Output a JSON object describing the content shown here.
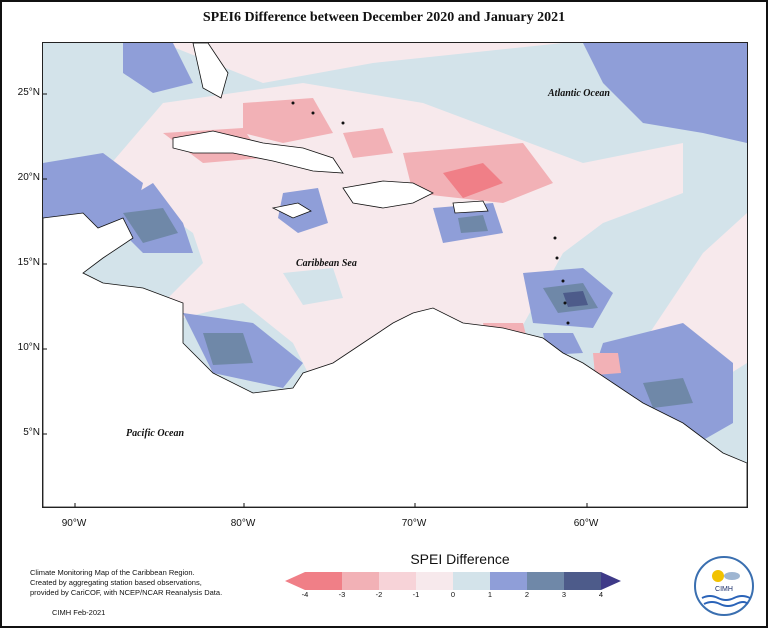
{
  "title": "SPEI6 Difference between December 2020 and January 2021",
  "map": {
    "lat_labels": [
      "25°N",
      "20°N",
      "15°N",
      "10°N",
      "5°N"
    ],
    "lon_labels": [
      "90°W",
      "80°W",
      "70°W",
      "60°W"
    ],
    "ocean_labels": {
      "atlantic": "Atlantic Ocean",
      "caribbean": "Caribbean Sea",
      "pacific": "Pacific Ocean"
    }
  },
  "credits": {
    "line1": "Climate Monitoring Map of the Caribbean Region.",
    "line2": "Created by aggregating station based observations,",
    "line3": "provided by CariCOF, with NCEP/NCAR Reanalysis Data.",
    "footer": "CIMH Feb-2021"
  },
  "legend": {
    "title": "SPEI Difference",
    "ticks": [
      "-4",
      "-3",
      "-2",
      "-1",
      "0",
      "1",
      "2",
      "3",
      "4"
    ],
    "colors": [
      "#f07f87",
      "#f2b1b6",
      "#f7d3d8",
      "#f7e9ec",
      "#d3e3ea",
      "#8f9ed8",
      "#6f88a8",
      "#4d5b8a"
    ]
  },
  "logo": {
    "text": "CIMH"
  }
}
